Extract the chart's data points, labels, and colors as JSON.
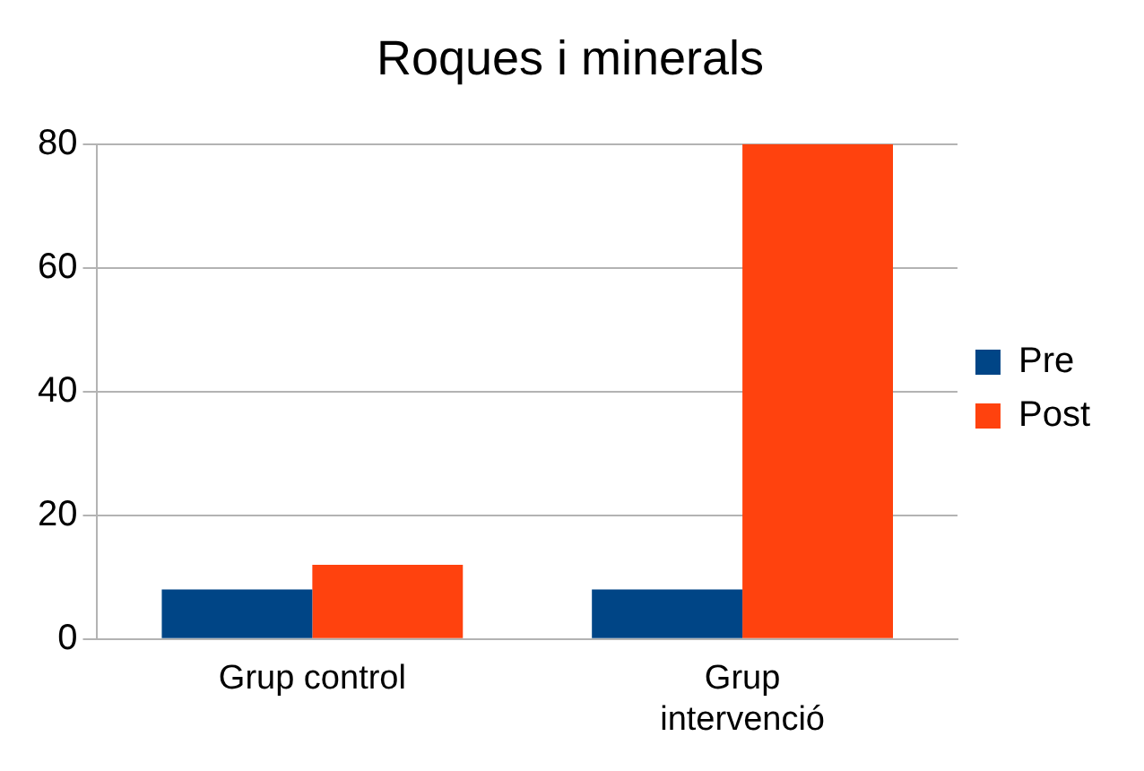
{
  "chart_data": {
    "type": "bar",
    "title": "Roques i minerals",
    "categories": [
      "Grup control",
      "Grup intervenció"
    ],
    "series": [
      {
        "name": "Pre",
        "color": "#004586",
        "values": [
          8,
          8
        ]
      },
      {
        "name": "Post",
        "color": "#ff420e",
        "values": [
          12,
          80
        ]
      }
    ],
    "ylim": [
      0,
      80
    ],
    "yticks": [
      0,
      20,
      40,
      60,
      80
    ],
    "grid": "y",
    "legend": "right"
  }
}
